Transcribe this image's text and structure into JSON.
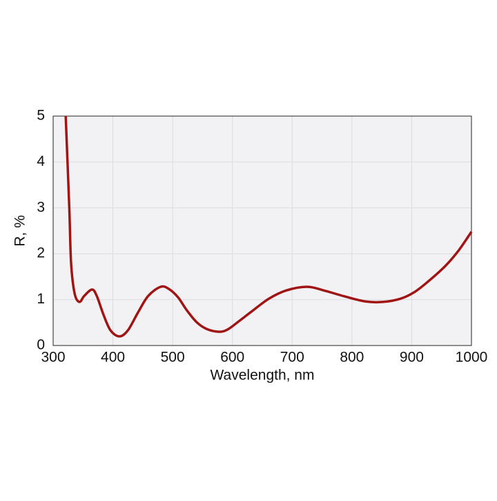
{
  "chart_data": {
    "type": "line",
    "x_label": "Wavelength, nm",
    "y_label": "R, %",
    "x": [
      321,
      327,
      330,
      336,
      344,
      352,
      365,
      373,
      384,
      396,
      411,
      425,
      442,
      459,
      480,
      494,
      509,
      523,
      540,
      557,
      578,
      592,
      609,
      633,
      661,
      690,
      725,
      753,
      788,
      823,
      852,
      881,
      904,
      927,
      956,
      979,
      1000
    ],
    "series": [
      {
        "name": "R",
        "color": "#a01414",
        "values": [
          5.0,
          3.0,
          1.8,
          1.13,
          0.95,
          1.08,
          1.22,
          1.08,
          0.68,
          0.33,
          0.2,
          0.33,
          0.72,
          1.08,
          1.28,
          1.23,
          1.05,
          0.78,
          0.51,
          0.36,
          0.3,
          0.35,
          0.51,
          0.75,
          1.02,
          1.2,
          1.28,
          1.2,
          1.07,
          0.96,
          0.95,
          1.02,
          1.16,
          1.39,
          1.73,
          2.08,
          2.48
        ]
      }
    ],
    "xlim": [
      300,
      1000
    ],
    "xticks": [
      300,
      400,
      500,
      600,
      700,
      800,
      900,
      1000
    ],
    "ylim": [
      0,
      5
    ],
    "yticks": [
      0,
      1,
      2,
      3,
      4,
      5
    ],
    "grid": true
  }
}
